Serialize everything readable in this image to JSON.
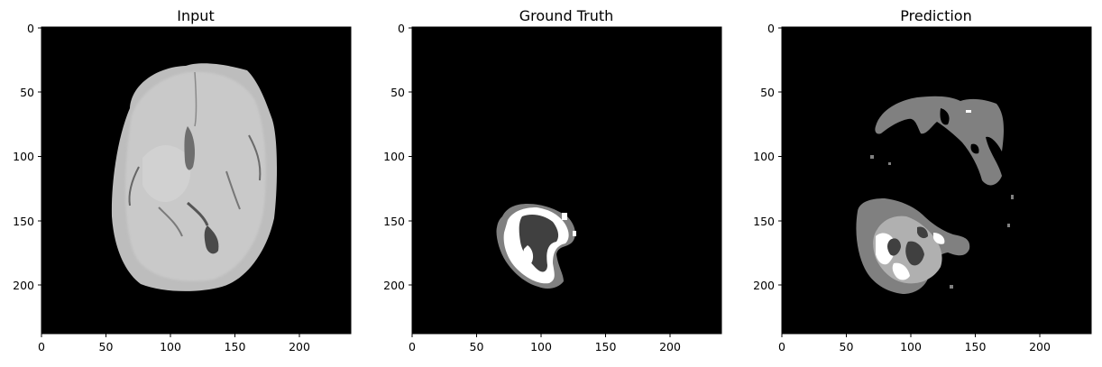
{
  "panels": [
    {
      "id": "input",
      "title": "Input",
      "x_ticks": [
        "0",
        "50",
        "100",
        "150",
        "200"
      ],
      "y_ticks": [
        "0",
        "50",
        "100",
        "150",
        "200"
      ],
      "content": "grayscale-brain-mri-slice"
    },
    {
      "id": "ground-truth",
      "title": "Ground Truth",
      "x_ticks": [
        "0",
        "50",
        "100",
        "150",
        "200"
      ],
      "y_ticks": [
        "0",
        "50",
        "100",
        "150",
        "200"
      ],
      "content": "tumor-segmentation-mask"
    },
    {
      "id": "prediction",
      "title": "Prediction",
      "x_ticks": [
        "0",
        "50",
        "100",
        "150",
        "200"
      ],
      "y_ticks": [
        "0",
        "50",
        "100",
        "150",
        "200"
      ],
      "content": "predicted-segmentation-mask"
    }
  ],
  "colors": {
    "background": "#000000",
    "class_1": "#808080",
    "class_2": "#404040",
    "class_3": "#ffffff",
    "brain_tissue": "#c8c8c8"
  }
}
